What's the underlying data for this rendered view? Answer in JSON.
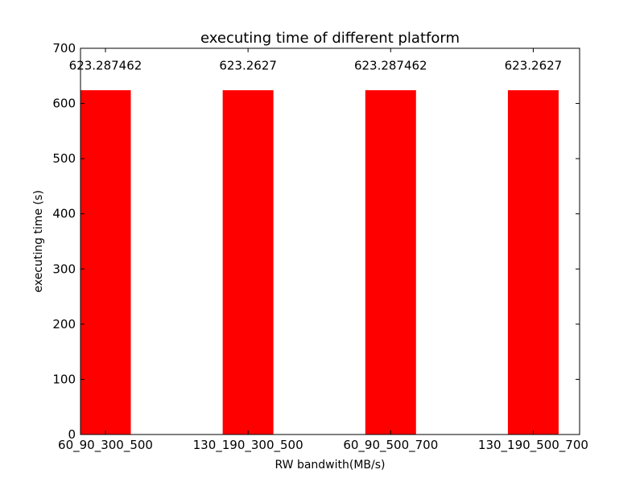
{
  "chart_data": {
    "type": "bar",
    "title": "executing time of different platform",
    "xlabel": "RW bandwith(MB/s)",
    "ylabel": "executing time (s)",
    "categories": [
      "60_90_300_500",
      "130_190_300_500",
      "60_90_500_700",
      "130_190_500_700"
    ],
    "values": [
      623.287462,
      623.2627,
      623.287462,
      623.2627
    ],
    "data_labels": [
      "623.287462",
      "623.2627",
      "623.287462",
      "623.2627"
    ],
    "ylim": [
      0,
      700
    ],
    "yticks": [
      0,
      100,
      200,
      300,
      400,
      500,
      600,
      700
    ],
    "ytick_labels": [
      "0",
      "100",
      "200",
      "300",
      "400",
      "500",
      "600",
      "700"
    ],
    "grid": false,
    "bar_color": "#ff0000"
  }
}
